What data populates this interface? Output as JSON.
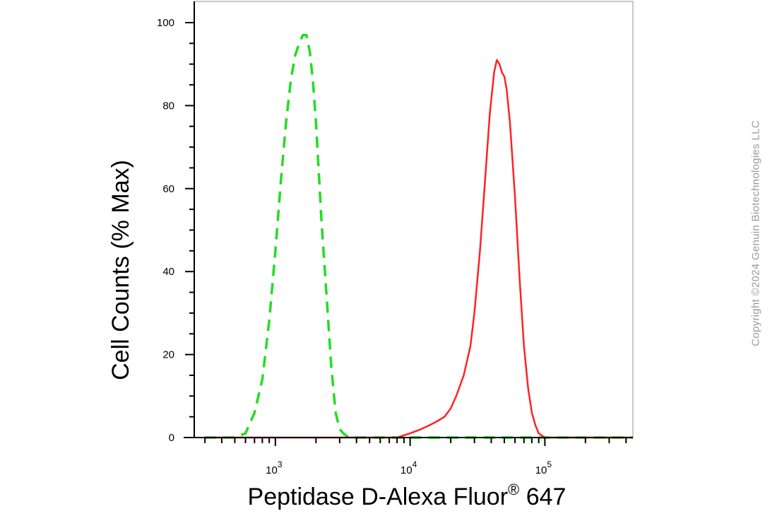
{
  "chart_data": {
    "type": "line",
    "xlabel": "Peptidase D-Alexa Fluor",
    "xlabel_sup": "®",
    "xlabel_suffix": " 647",
    "ylabel": "Cell Counts (% Max)",
    "xscale": "log",
    "xlim": [
      250,
      450000
    ],
    "ylim": [
      0,
      100
    ],
    "x_major_ticks": [
      1000,
      10000,
      100000
    ],
    "x_tick_labels": [
      {
        "base": "10",
        "exp": "3"
      },
      {
        "base": "10",
        "exp": "4"
      },
      {
        "base": "10",
        "exp": "5"
      }
    ],
    "y_ticks": [
      0,
      20,
      40,
      60,
      80,
      100
    ],
    "y_tick_labels": [
      "0",
      "20",
      "40",
      "60",
      "80",
      "100"
    ],
    "grid": false,
    "series": [
      {
        "color": "#22dd22",
        "style": "dashed",
        "x": [
          300,
          500,
          600,
          700,
          800,
          900,
          1000,
          1100,
          1200,
          1300,
          1400,
          1500,
          1600,
          1700,
          1800,
          1900,
          2000,
          2100,
          2200,
          2400,
          2600,
          2800,
          3000,
          3200,
          3500,
          4000,
          6000,
          10000,
          20000,
          50000,
          100000,
          200000,
          450000
        ],
        "y": [
          0,
          0,
          1,
          6,
          14,
          28,
          45,
          62,
          76,
          86,
          92,
          95,
          97,
          97,
          93,
          86,
          76,
          64,
          52,
          34,
          17,
          6,
          2,
          1,
          0,
          0,
          0,
          0,
          0,
          0,
          0,
          0,
          0
        ]
      },
      {
        "color": "#ff2222",
        "style": "solid",
        "x": [
          300,
          5000,
          8000,
          10000,
          12000,
          14000,
          16000,
          18000,
          20000,
          22000,
          25000,
          28000,
          30000,
          33000,
          36000,
          39000,
          42000,
          44000,
          46000,
          48000,
          50000,
          52000,
          55000,
          60000,
          65000,
          70000,
          75000,
          80000,
          85000,
          90000,
          100000,
          120000,
          150000,
          450000
        ],
        "y": [
          0,
          0,
          0,
          1,
          2,
          3,
          4,
          5,
          7,
          10,
          15,
          22,
          30,
          45,
          62,
          78,
          88,
          91,
          90,
          88,
          87,
          84,
          76,
          58,
          38,
          22,
          12,
          6,
          3,
          1,
          0,
          0,
          0,
          0
        ]
      }
    ]
  },
  "watermark": "Copyright ©2024 Genuin Biotechnologies LLC"
}
